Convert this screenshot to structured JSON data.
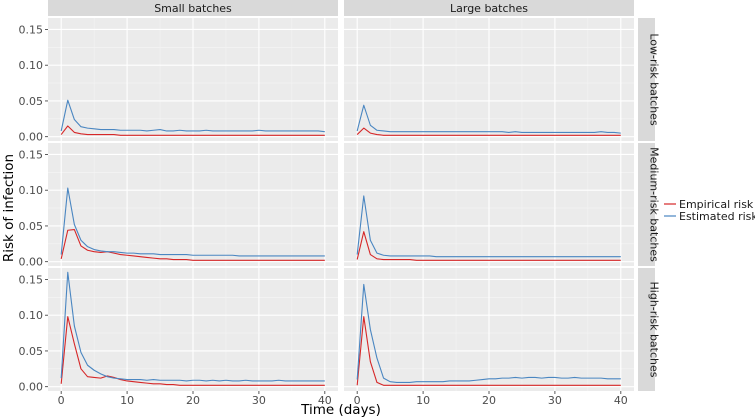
{
  "chart_data": {
    "type": "line",
    "xlabel": "Time (days)",
    "ylabel": "Risk of infection",
    "xlim": [
      0,
      40
    ],
    "ylim": [
      0,
      0.16
    ],
    "x_ticks": [
      0,
      10,
      20,
      30,
      40
    ],
    "y_ticks": [
      0.0,
      0.05,
      0.1,
      0.15
    ],
    "x_tick_labels": [
      "0",
      "10",
      "20",
      "30",
      "40"
    ],
    "y_tick_labels": [
      "0.00",
      "0.05",
      "0.10",
      "0.15"
    ],
    "columns": [
      "Small batches",
      "Large batches"
    ],
    "rows": [
      "Low-risk batches",
      "Medium-risk batches",
      "High-risk batches"
    ],
    "grid": true,
    "legend_position": "right",
    "legend": [
      {
        "name": "Empirical risk",
        "color": "#d62728"
      },
      {
        "name": "Estimated risk",
        "color": "#4a86c1"
      }
    ],
    "x": [
      0,
      1,
      2,
      3,
      4,
      5,
      6,
      7,
      8,
      9,
      10,
      11,
      12,
      13,
      14,
      15,
      16,
      17,
      18,
      19,
      20,
      21,
      22,
      23,
      24,
      25,
      26,
      27,
      28,
      29,
      30,
      31,
      32,
      33,
      34,
      35,
      36,
      37,
      38,
      39,
      40
    ],
    "panels": [
      {
        "row": "Low-risk batches",
        "column": "Small batches",
        "series": [
          {
            "name": "Empirical risk",
            "values": [
              0.003,
              0.015,
              0.006,
              0.004,
              0.003,
              0.003,
              0.003,
              0.003,
              0.003,
              0.002,
              0.002,
              0.002,
              0.002,
              0.002,
              0.002,
              0.002,
              0.002,
              0.002,
              0.002,
              0.002,
              0.002,
              0.002,
              0.002,
              0.002,
              0.002,
              0.002,
              0.002,
              0.002,
              0.002,
              0.002,
              0.002,
              0.002,
              0.002,
              0.002,
              0.002,
              0.002,
              0.002,
              0.002,
              0.002,
              0.002,
              0.002
            ]
          },
          {
            "name": "Estimated risk",
            "values": [
              0.008,
              0.051,
              0.024,
              0.014,
              0.012,
              0.011,
              0.01,
              0.01,
              0.01,
              0.009,
              0.009,
              0.009,
              0.009,
              0.008,
              0.009,
              0.01,
              0.008,
              0.008,
              0.009,
              0.008,
              0.008,
              0.008,
              0.009,
              0.008,
              0.008,
              0.008,
              0.008,
              0.008,
              0.008,
              0.008,
              0.009,
              0.008,
              0.008,
              0.008,
              0.008,
              0.008,
              0.008,
              0.008,
              0.008,
              0.008,
              0.007
            ]
          }
        ]
      },
      {
        "row": "Low-risk batches",
        "column": "Large batches",
        "series": [
          {
            "name": "Empirical risk",
            "values": [
              0.003,
              0.012,
              0.005,
              0.003,
              0.002,
              0.002,
              0.002,
              0.002,
              0.002,
              0.002,
              0.002,
              0.002,
              0.002,
              0.002,
              0.002,
              0.002,
              0.002,
              0.002,
              0.002,
              0.002,
              0.002,
              0.002,
              0.002,
              0.002,
              0.002,
              0.002,
              0.002,
              0.002,
              0.002,
              0.002,
              0.002,
              0.002,
              0.002,
              0.002,
              0.002,
              0.002,
              0.002,
              0.002,
              0.002,
              0.002,
              0.002
            ]
          },
          {
            "name": "Estimated risk",
            "values": [
              0.008,
              0.044,
              0.016,
              0.009,
              0.008,
              0.007,
              0.007,
              0.007,
              0.007,
              0.007,
              0.007,
              0.007,
              0.007,
              0.007,
              0.007,
              0.007,
              0.007,
              0.007,
              0.007,
              0.007,
              0.007,
              0.007,
              0.007,
              0.006,
              0.007,
              0.006,
              0.006,
              0.006,
              0.006,
              0.006,
              0.006,
              0.006,
              0.006,
              0.006,
              0.006,
              0.006,
              0.006,
              0.007,
              0.006,
              0.006,
              0.005
            ]
          }
        ]
      },
      {
        "row": "Medium-risk batches",
        "column": "Small batches",
        "series": [
          {
            "name": "Empirical risk",
            "values": [
              0.004,
              0.044,
              0.045,
              0.022,
              0.016,
              0.014,
              0.013,
              0.014,
              0.012,
              0.01,
              0.009,
              0.008,
              0.007,
              0.006,
              0.005,
              0.004,
              0.004,
              0.003,
              0.003,
              0.003,
              0.002,
              0.002,
              0.002,
              0.002,
              0.002,
              0.002,
              0.002,
              0.002,
              0.002,
              0.002,
              0.002,
              0.002,
              0.002,
              0.002,
              0.002,
              0.002,
              0.002,
              0.002,
              0.002,
              0.002,
              0.002
            ]
          },
          {
            "name": "Estimated risk",
            "values": [
              0.01,
              0.103,
              0.052,
              0.03,
              0.021,
              0.017,
              0.015,
              0.014,
              0.014,
              0.013,
              0.012,
              0.012,
              0.011,
              0.011,
              0.011,
              0.01,
              0.01,
              0.01,
              0.01,
              0.01,
              0.009,
              0.009,
              0.009,
              0.009,
              0.009,
              0.009,
              0.009,
              0.008,
              0.008,
              0.008,
              0.008,
              0.008,
              0.008,
              0.008,
              0.008,
              0.008,
              0.008,
              0.008,
              0.008,
              0.008,
              0.008
            ]
          }
        ]
      },
      {
        "row": "Medium-risk batches",
        "column": "Large batches",
        "series": [
          {
            "name": "Empirical risk",
            "values": [
              0.003,
              0.042,
              0.01,
              0.004,
              0.003,
              0.003,
              0.003,
              0.003,
              0.003,
              0.002,
              0.002,
              0.002,
              0.002,
              0.002,
              0.002,
              0.002,
              0.002,
              0.002,
              0.002,
              0.002,
              0.002,
              0.002,
              0.002,
              0.002,
              0.002,
              0.002,
              0.002,
              0.002,
              0.002,
              0.002,
              0.002,
              0.002,
              0.002,
              0.002,
              0.002,
              0.002,
              0.002,
              0.002,
              0.002,
              0.002,
              0.002
            ]
          },
          {
            "name": "Estimated risk",
            "values": [
              0.01,
              0.092,
              0.03,
              0.012,
              0.009,
              0.008,
              0.008,
              0.008,
              0.008,
              0.008,
              0.008,
              0.008,
              0.007,
              0.007,
              0.007,
              0.007,
              0.007,
              0.007,
              0.007,
              0.007,
              0.007,
              0.007,
              0.007,
              0.007,
              0.007,
              0.007,
              0.007,
              0.007,
              0.007,
              0.007,
              0.007,
              0.007,
              0.007,
              0.007,
              0.007,
              0.007,
              0.007,
              0.007,
              0.007,
              0.007,
              0.007
            ]
          }
        ]
      },
      {
        "row": "High-risk batches",
        "column": "Small batches",
        "series": [
          {
            "name": "Empirical risk",
            "values": [
              0.004,
              0.098,
              0.06,
              0.025,
              0.014,
              0.013,
              0.012,
              0.015,
              0.013,
              0.01,
              0.008,
              0.007,
              0.006,
              0.005,
              0.004,
              0.004,
              0.003,
              0.003,
              0.002,
              0.002,
              0.002,
              0.002,
              0.002,
              0.002,
              0.002,
              0.002,
              0.002,
              0.002,
              0.002,
              0.002,
              0.002,
              0.002,
              0.002,
              0.002,
              0.002,
              0.002,
              0.002,
              0.002,
              0.002,
              0.002,
              0.002
            ]
          },
          {
            "name": "Estimated risk",
            "values": [
              0.012,
              0.16,
              0.085,
              0.048,
              0.03,
              0.023,
              0.018,
              0.014,
              0.012,
              0.011,
              0.01,
              0.01,
              0.01,
              0.009,
              0.01,
              0.009,
              0.009,
              0.009,
              0.009,
              0.008,
              0.009,
              0.009,
              0.008,
              0.009,
              0.008,
              0.009,
              0.008,
              0.008,
              0.009,
              0.008,
              0.008,
              0.008,
              0.008,
              0.009,
              0.008,
              0.008,
              0.008,
              0.008,
              0.008,
              0.008,
              0.008
            ]
          }
        ]
      },
      {
        "row": "High-risk batches",
        "column": "Large batches",
        "series": [
          {
            "name": "Empirical risk",
            "values": [
              0.002,
              0.098,
              0.035,
              0.006,
              0.002,
              0.002,
              0.002,
              0.002,
              0.002,
              0.002,
              0.002,
              0.002,
              0.002,
              0.002,
              0.002,
              0.002,
              0.002,
              0.002,
              0.002,
              0.002,
              0.002,
              0.002,
              0.002,
              0.002,
              0.002,
              0.002,
              0.002,
              0.002,
              0.002,
              0.002,
              0.002,
              0.002,
              0.002,
              0.002,
              0.002,
              0.002,
              0.002,
              0.002,
              0.002,
              0.002,
              0.002
            ]
          },
          {
            "name": "Estimated risk",
            "values": [
              0.01,
              0.143,
              0.08,
              0.04,
              0.012,
              0.007,
              0.006,
              0.006,
              0.006,
              0.007,
              0.007,
              0.007,
              0.007,
              0.007,
              0.008,
              0.008,
              0.008,
              0.008,
              0.009,
              0.01,
              0.011,
              0.011,
              0.012,
              0.012,
              0.013,
              0.012,
              0.013,
              0.013,
              0.012,
              0.013,
              0.013,
              0.012,
              0.012,
              0.013,
              0.012,
              0.012,
              0.012,
              0.012,
              0.011,
              0.011,
              0.011
            ]
          }
        ]
      }
    ]
  }
}
